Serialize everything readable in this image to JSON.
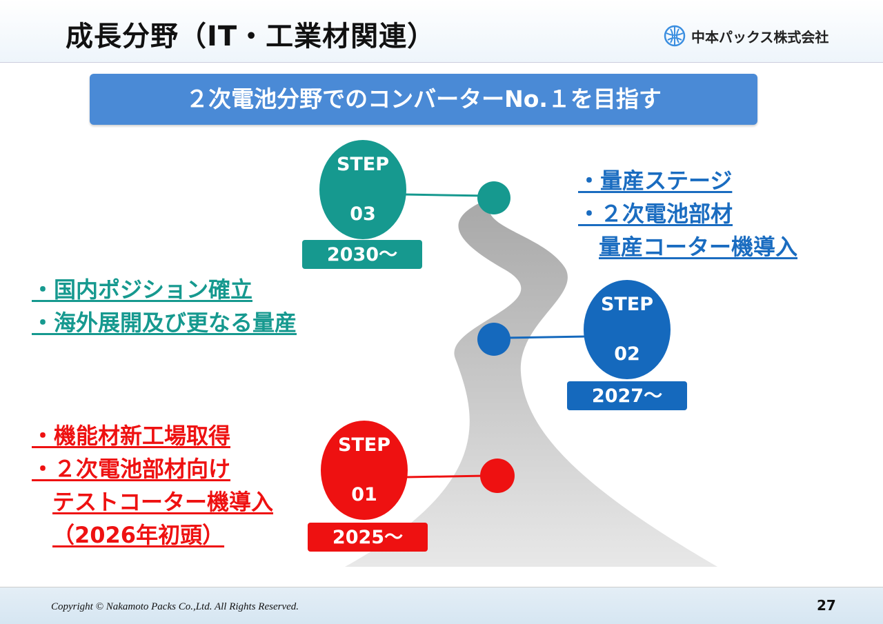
{
  "header": {
    "title": "成長分野（IT・工業材関連）",
    "logo_text": "中本パックス株式会社"
  },
  "banner": "２次電池分野でのコンバーターNo.１を目指す",
  "colors": {
    "step3": "#16998f",
    "step2": "#1569bd",
    "step1": "#ee1111",
    "banner": "#4a8ad6",
    "road": "#bdbdbd"
  },
  "steps": [
    {
      "label": "STEP",
      "num": "03",
      "year": "2030～",
      "bullets": [
        "・量産ステージ",
        "・２次電池部材",
        "量産コーター機導入"
      ],
      "side_bullets": [
        "・国内ポジション確立",
        "・海外展開及び更なる量産"
      ]
    },
    {
      "label": "STEP",
      "num": "02",
      "year": "2027～"
    },
    {
      "label": "STEP",
      "num": "01",
      "year": "2025～",
      "bullets": [
        "・機能材新工場取得",
        "・２次電池部材向け",
        "テストコーター機導入",
        "（2026年初頭）"
      ]
    }
  ],
  "footer": {
    "copyright": "Copyright © Nakamoto Packs Co.,Ltd. All Rights Reserved.",
    "page": "27"
  }
}
